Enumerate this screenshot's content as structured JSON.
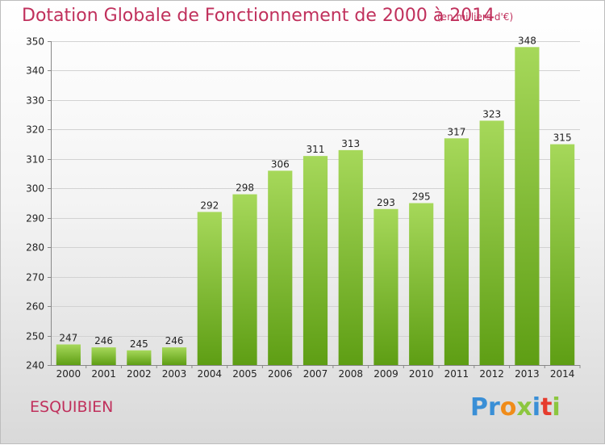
{
  "chart_data": {
    "type": "bar",
    "title": "Dotation Globale de Fonctionnement de 2000 à 2014",
    "subtitle": "(en milliers d'€)",
    "categories": [
      "2000",
      "2001",
      "2002",
      "2003",
      "2004",
      "2005",
      "2006",
      "2007",
      "2008",
      "2009",
      "2010",
      "2011",
      "2012",
      "2013",
      "2014"
    ],
    "values": [
      247,
      246,
      245,
      246,
      292,
      298,
      306,
      311,
      313,
      293,
      295,
      317,
      323,
      348,
      315
    ],
    "ylim": [
      240,
      350
    ],
    "yticks": [
      240,
      250,
      260,
      270,
      280,
      290,
      300,
      310,
      320,
      330,
      340,
      350
    ],
    "grid": true,
    "bar_color": "#7cb82f",
    "title_color": "#c0305c"
  },
  "footer": {
    "commune": "ESQUIBIEN",
    "logo_text": "Proxiti",
    "logo_letters": [
      {
        "ch": "P",
        "color": "#3a8fd6"
      },
      {
        "ch": "r",
        "color": "#3a8fd6"
      },
      {
        "ch": "o",
        "color": "#f08c1a"
      },
      {
        "ch": "x",
        "color": "#8cc63f"
      },
      {
        "ch": "i",
        "color": "#3a8fd6"
      },
      {
        "ch": "t",
        "color": "#e63c2e"
      },
      {
        "ch": "i",
        "color": "#8cc63f"
      }
    ]
  }
}
